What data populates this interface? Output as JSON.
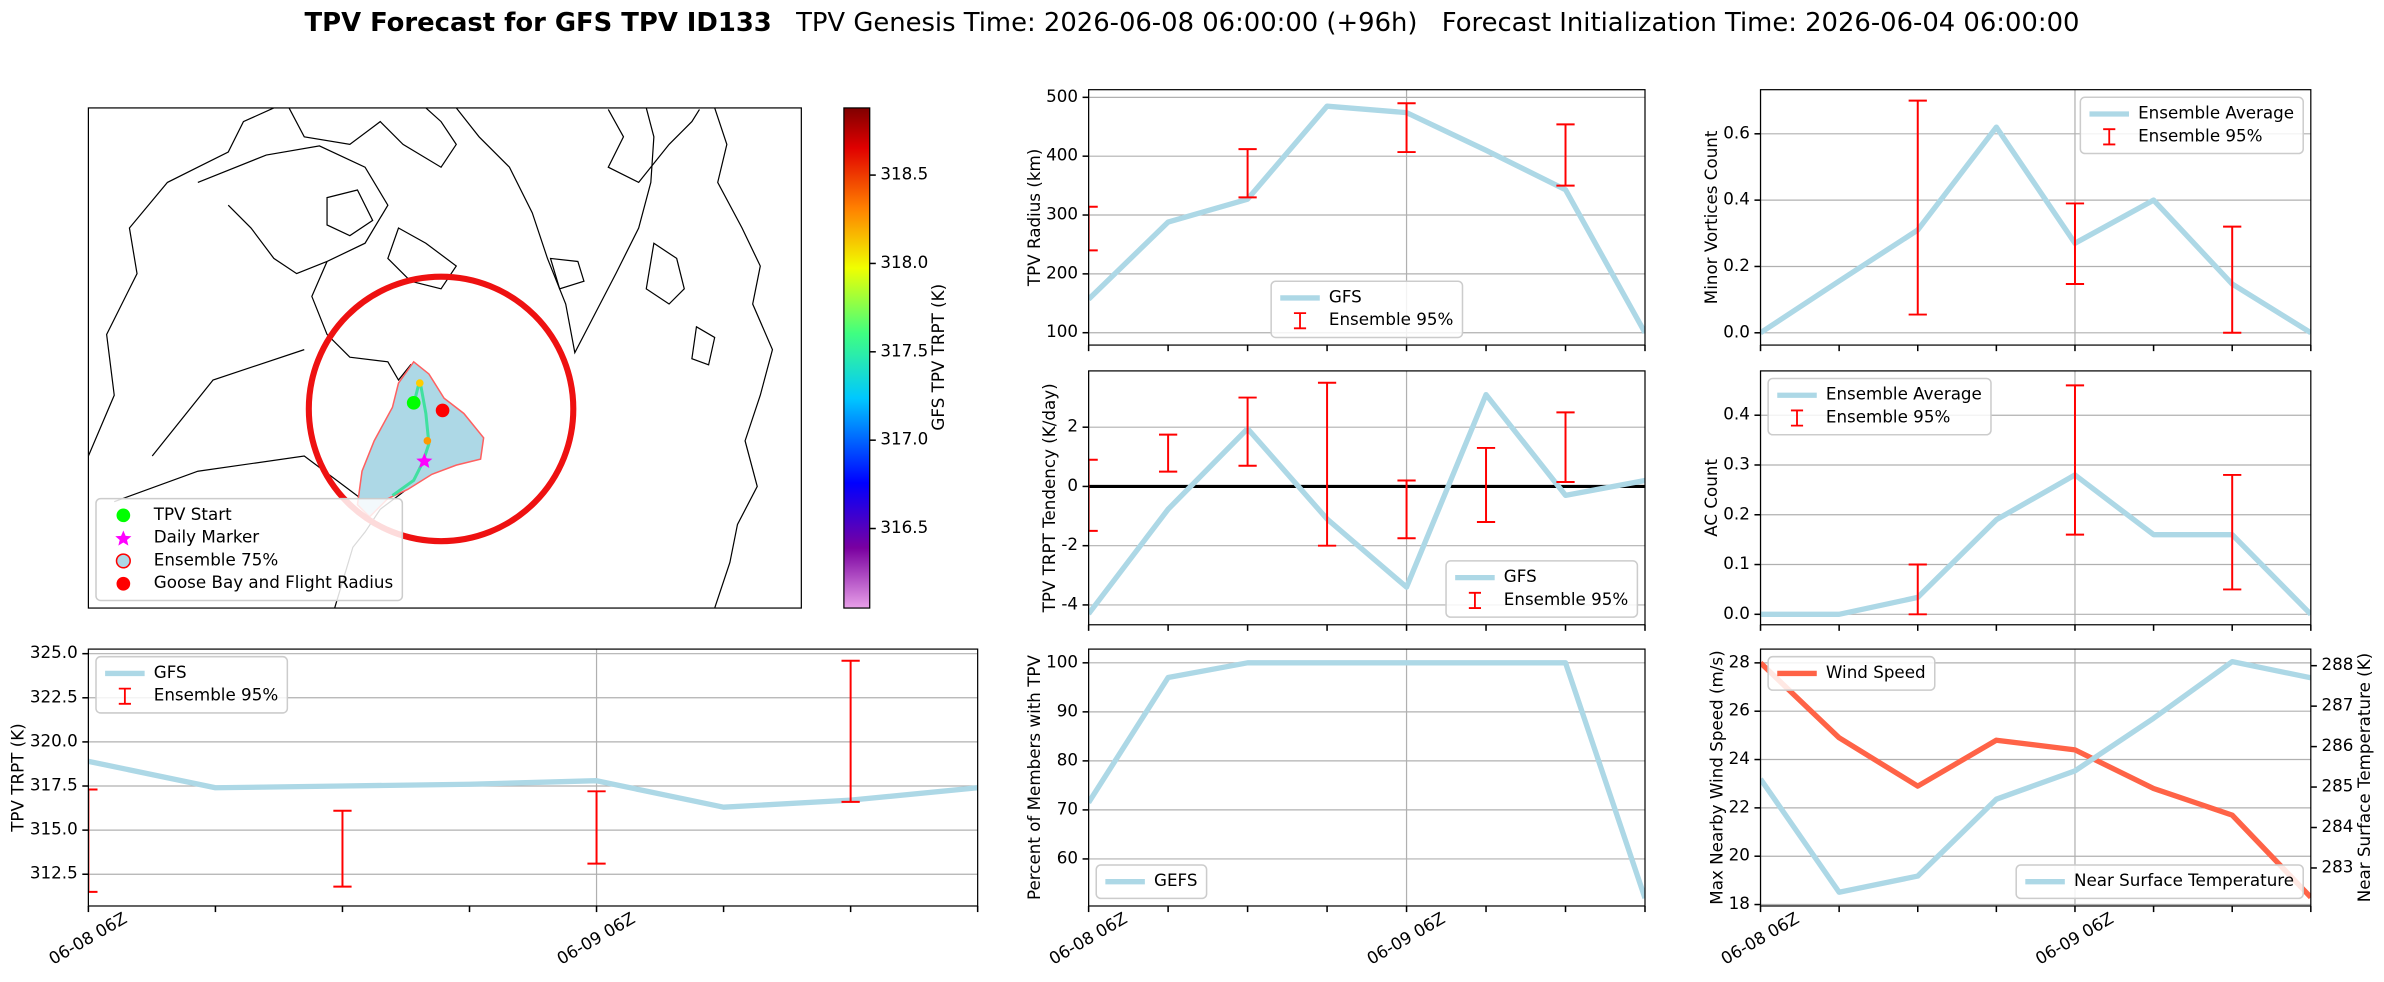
{
  "header": {
    "title": "TPV Forecast for GFS TPV ID133",
    "genesis": "TPV Genesis Time: 2026-06-08 06:00:00 (+96h)",
    "init": "Forecast Initialization Time: 2026-06-04 06:00:00"
  },
  "chart_data": [
    {
      "type": "map",
      "legend": [
        {
          "name": "TPV Start",
          "color": "#00ff00",
          "marker": "circle"
        },
        {
          "name": "Daily Marker",
          "color": "#ff00ff",
          "marker": "star"
        },
        {
          "name": "Ensemble 75%",
          "color": "#add8e6",
          "marker": "circle-edge"
        },
        {
          "name": "Goose Bay and Flight Radius",
          "color": "#ff0000",
          "marker": "circle"
        }
      ],
      "legend_loc": "lower left",
      "colorbar": {
        "label": "GFS TPV TRPT (K)",
        "lim": [
          316.05,
          318.88
        ],
        "ticks": [
          316.5,
          {
            "value": 317.0,
            "label": "317.0"
          },
          317.5,
          {
            "value": 318.0,
            "label": "318.0"
          },
          318.5
        ]
      }
    },
    {
      "type": "line",
      "ylabel": "TPV Radius (km)",
      "categories": [
        null,
        null,
        null,
        null,
        null,
        null,
        null,
        null
      ],
      "series": [
        {
          "name": "GFS",
          "color": "#add8e6",
          "style": "line",
          "values": [
            157,
            288,
            327,
            485,
            474,
            410,
            343,
            100
          ]
        },
        {
          "name": "Ensemble 95%",
          "color": "#ff0000",
          "style": "errorbar",
          "lower": [
            240,
            null,
            330,
            null,
            407,
            null,
            350,
            null
          ],
          "upper": [
            314,
            null,
            412,
            null,
            490,
            null,
            454,
            null
          ]
        }
      ],
      "ylim": [
        79,
        513
      ],
      "yticks": [
        100,
        200,
        300,
        400,
        500
      ],
      "grid": true,
      "legend": "lower center"
    },
    {
      "type": "line",
      "ylabel": "Minor Vortices Count",
      "categories": [
        null,
        null,
        null,
        null,
        null,
        null,
        null,
        null
      ],
      "series": [
        {
          "name": "Ensemble Average",
          "color": "#add8e6",
          "style": "line",
          "values": [
            0.0,
            0.156,
            0.31,
            0.62,
            0.27,
            0.4,
            0.147,
            0.0
          ]
        },
        {
          "name": "Ensemble 95%",
          "color": "#ff0000",
          "style": "errorbar",
          "lower": [
            null,
            null,
            0.055,
            null,
            0.147,
            null,
            0.0,
            null
          ],
          "upper": [
            null,
            null,
            0.7,
            null,
            0.39,
            null,
            0.32,
            null
          ]
        }
      ],
      "ylim": [
        -0.037,
        0.733
      ],
      "yticks": [
        {
          "value": 0,
          "label": "0.0"
        },
        0.2,
        0.4,
        0.6
      ],
      "grid": true,
      "legend": "upper right"
    },
    {
      "type": "line",
      "ylabel": "TPV TRPT (K)",
      "categories": [
        "06-08 06Z",
        null,
        null,
        null,
        "06-09 06Z",
        null,
        null,
        null
      ],
      "series": [
        {
          "name": "GFS",
          "color": "#add8e6",
          "style": "line",
          "values": [
            318.9,
            317.4,
            317.5,
            317.6,
            317.8,
            316.3,
            316.7,
            317.4
          ]
        },
        {
          "name": "Ensemble 95%",
          "color": "#ff0000",
          "style": "errorbar",
          "lower": [
            311.5,
            null,
            311.8,
            null,
            313.1,
            null,
            316.6,
            null
          ],
          "upper": [
            317.3,
            null,
            316.1,
            null,
            317.2,
            null,
            324.6,
            null
          ]
        }
      ],
      "ylim": [
        310.7,
        325.26
      ],
      "yticks": [
        312.5,
        {
          "value": 315,
          "label": "315.0"
        },
        317.5,
        {
          "value": 320,
          "label": "320.0"
        },
        322.5,
        {
          "value": 325,
          "label": "325.0"
        }
      ],
      "grid": true,
      "legend": "upper left"
    },
    {
      "type": "line",
      "ylabel": "TPV TRPT Tendency (K/day)",
      "categories": [
        null,
        null,
        null,
        null,
        null,
        null,
        null,
        null
      ],
      "series": [
        {
          "name": "GFS",
          "color": "#add8e6",
          "style": "line",
          "values": [
            -4.3,
            -0.77,
            1.95,
            -1.1,
            -3.4,
            3.1,
            -0.3,
            0.2
          ]
        },
        {
          "name": "Ensemble 95%",
          "color": "#ff0000",
          "style": "errorbar",
          "lower": [
            -1.5,
            0.5,
            0.7,
            -2.0,
            -1.75,
            -1.2,
            0.15,
            null
          ],
          "upper": [
            0.9,
            1.75,
            3.0,
            3.5,
            0.2,
            1.3,
            2.5,
            null
          ]
        }
      ],
      "hline": {
        "value": 0,
        "color": "#000000"
      },
      "ylim": [
        -4.67,
        3.9
      ],
      "yticks": [
        -4,
        -2,
        0,
        2
      ],
      "grid": true,
      "legend": "lower right"
    },
    {
      "type": "line",
      "ylabel": "AC Count",
      "categories": [
        null,
        null,
        null,
        null,
        null,
        null,
        null,
        null
      ],
      "series": [
        {
          "name": "Ensemble Average",
          "color": "#add8e6",
          "style": "line",
          "values": [
            0.0,
            0.0,
            0.034,
            0.19,
            0.28,
            0.16,
            0.16,
            0.0
          ]
        },
        {
          "name": "Ensemble 95%",
          "color": "#ff0000",
          "style": "errorbar",
          "lower": [
            null,
            null,
            0.0,
            null,
            0.16,
            null,
            0.05,
            null
          ],
          "upper": [
            null,
            null,
            0.1,
            null,
            0.46,
            null,
            0.28,
            null
          ]
        }
      ],
      "ylim": [
        -0.021,
        0.489
      ],
      "yticks": [
        {
          "value": 0,
          "label": "0.0"
        },
        0.1,
        0.2,
        0.3,
        0.4
      ],
      "grid": true,
      "legend": "upper left"
    },
    {
      "type": "line",
      "ylabel": "Percent of Members with TPV",
      "categories": [
        "06-08 06Z",
        null,
        null,
        null,
        "06-09 06Z",
        null,
        null,
        null
      ],
      "series": [
        {
          "name": "GEFS",
          "color": "#add8e6",
          "style": "line",
          "values": [
            71.5,
            97,
            100,
            100,
            100,
            100,
            100,
            52
          ]
        }
      ],
      "ylim": [
        50.4,
        102.8
      ],
      "yticks": [
        60,
        70,
        80,
        90,
        100
      ],
      "grid": true,
      "legend": "lower left"
    },
    {
      "type": "line",
      "ylabel": "Max Nearby Wind Speed (m/s)",
      "ylabel_color": "#ff6347",
      "y2label": "Near Surface Temperature (K)",
      "y2label_color": "#4169e1",
      "categories": [
        "06-08 06Z",
        null,
        null,
        null,
        "06-09 06Z",
        null,
        null,
        null
      ],
      "series": [
        {
          "name": "Wind Speed",
          "color": "#ff6347",
          "style": "line",
          "values": [
            28,
            24.9,
            22.9,
            24.8,
            24.4,
            22.8,
            21.7,
            18.3
          ]
        },
        {
          "name": "Near Surface Temperature",
          "color": "#add8e6",
          "style": "line",
          "axis": "y2",
          "values": [
            285.2,
            282.4,
            282.8,
            284.7,
            285.4,
            286.7,
            288.1,
            287.7
          ]
        }
      ],
      "ylim": [
        17.94,
        28.57
      ],
      "yticks": [
        18,
        20,
        22,
        24,
        26,
        28
      ],
      "y2lim": [
        282.06,
        288.41
      ],
      "y2ticks": [
        283,
        284,
        285,
        286,
        287,
        288
      ],
      "grid": true,
      "legend": "upper left",
      "legend2": "lower right"
    }
  ]
}
